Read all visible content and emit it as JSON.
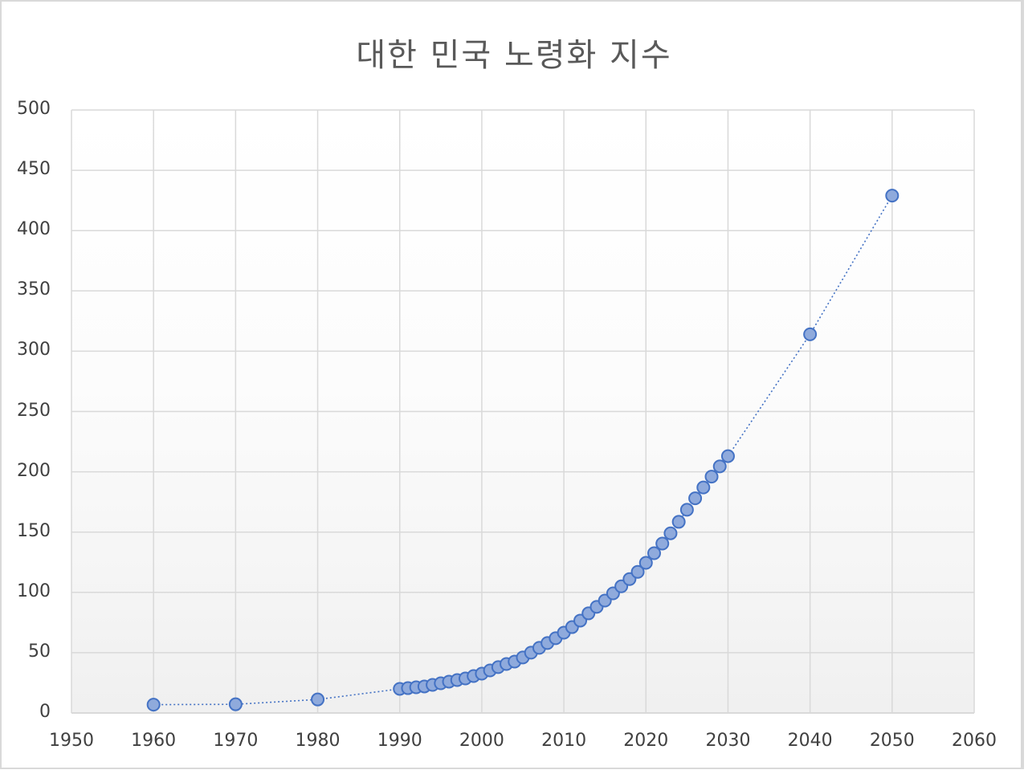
{
  "chart_data": {
    "type": "scatter",
    "title": "대한 민국 노령화 지수",
    "xlabel": "",
    "ylabel": "",
    "xlim": [
      1950,
      2060
    ],
    "ylim": [
      0,
      500
    ],
    "x_ticks": [
      "1950",
      "1960",
      "1970",
      "1980",
      "1990",
      "2000",
      "2010",
      "2020",
      "2030",
      "2040",
      "2050",
      "2060"
    ],
    "y_ticks": [
      "0",
      "50",
      "100",
      "150",
      "200",
      "250",
      "300",
      "350",
      "400",
      "450",
      "500"
    ],
    "grid": true,
    "legend": null,
    "line_style": "dotted",
    "series": [
      {
        "name": "노령화 지수",
        "color": "#4472c4",
        "marker_fill": "#8faadc",
        "x": [
          1960,
          1970,
          1980,
          1990,
          1991,
          1992,
          1993,
          1994,
          1995,
          1996,
          1997,
          1998,
          1999,
          2000,
          2001,
          2002,
          2003,
          2004,
          2005,
          2006,
          2007,
          2008,
          2009,
          2010,
          2011,
          2012,
          2013,
          2014,
          2015,
          2016,
          2017,
          2018,
          2019,
          2020,
          2021,
          2022,
          2023,
          2024,
          2025,
          2026,
          2027,
          2028,
          2029,
          2030,
          2040,
          2050
        ],
        "values": [
          6.9,
          7.2,
          11.2,
          20.0,
          20.6,
          21.3,
          22.0,
          23.3,
          24.6,
          26.0,
          27.3,
          28.6,
          30.6,
          32.6,
          35.3,
          38.0,
          40.6,
          42.6,
          46.0,
          50.0,
          54.0,
          58.0,
          62.0,
          66.6,
          71.2,
          76.6,
          82.6,
          88.0,
          93.2,
          99.2,
          105.0,
          111.0,
          117.0,
          124.5,
          132.5,
          140.5,
          149.0,
          158.5,
          168.5,
          178.0,
          187.0,
          196.0,
          204.5,
          213.0,
          314.0,
          429.0
        ]
      }
    ]
  }
}
